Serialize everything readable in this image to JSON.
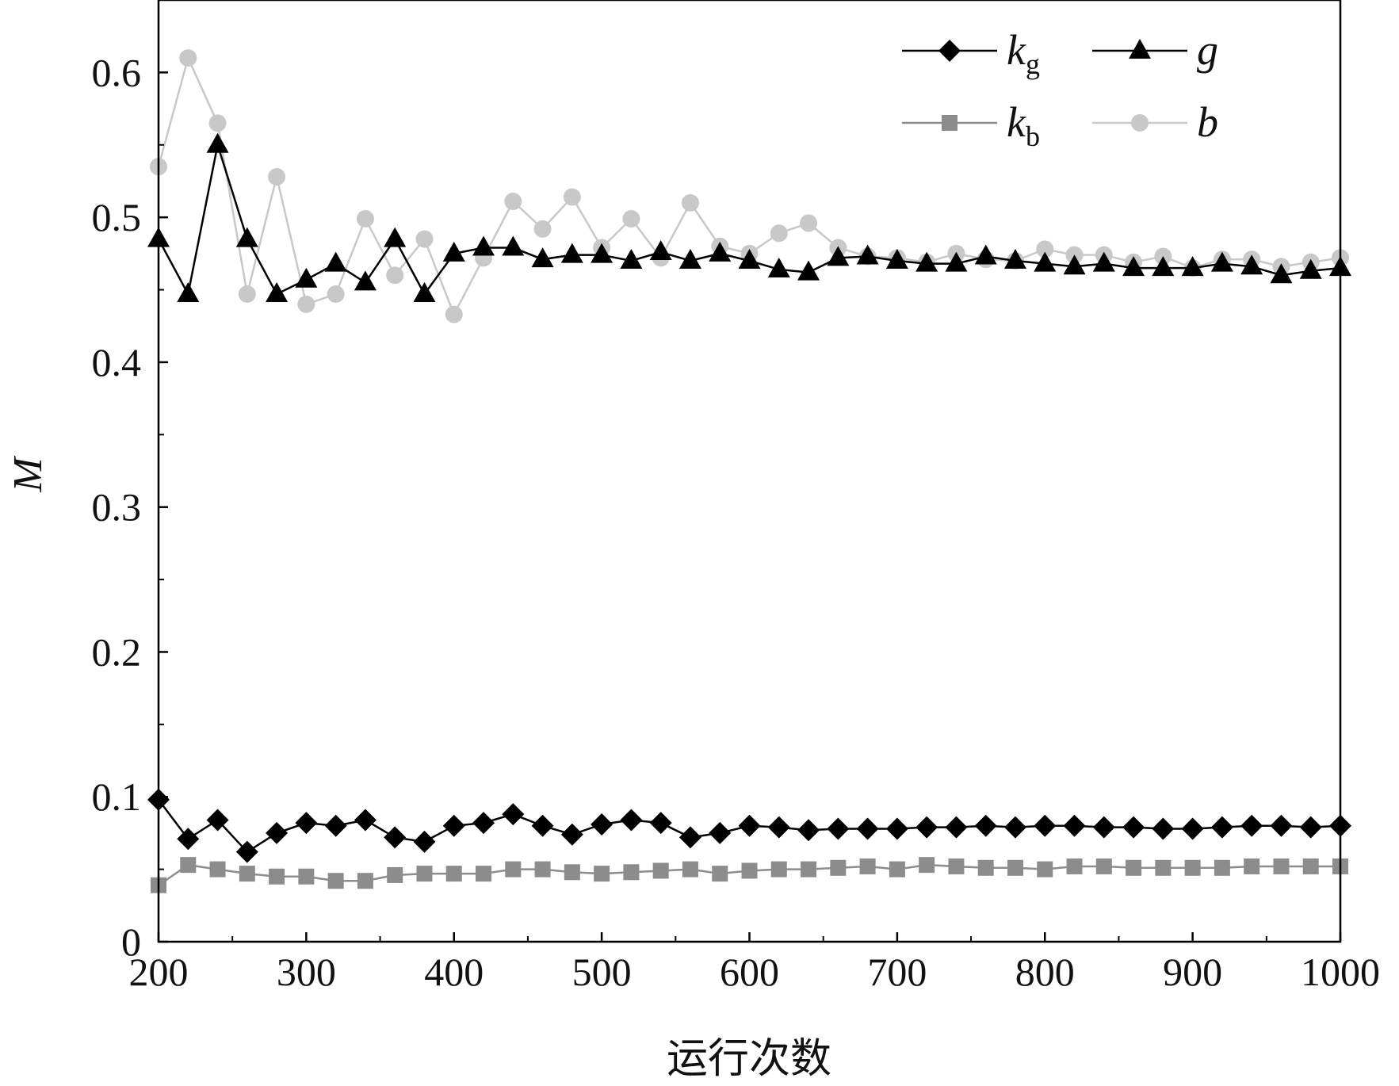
{
  "chart_data": {
    "type": "line",
    "xlabel": "运行次数",
    "ylabel": "M",
    "xlim": [
      200,
      1000
    ],
    "ylim": [
      0,
      0.65
    ],
    "xticks": [
      "200",
      "300",
      "400",
      "500",
      "600",
      "700",
      "800",
      "900",
      "1000"
    ],
    "yticks": [
      "0",
      "0.1",
      "0.2",
      "0.3",
      "0.4",
      "0.5",
      "0.6"
    ],
    "grid": false,
    "legend_position": "top-right",
    "x": [
      200,
      220,
      240,
      260,
      280,
      300,
      320,
      340,
      360,
      380,
      400,
      420,
      440,
      460,
      480,
      500,
      520,
      540,
      560,
      580,
      600,
      620,
      640,
      660,
      680,
      700,
      720,
      740,
      760,
      780,
      800,
      820,
      840,
      860,
      880,
      900,
      920,
      940,
      960,
      980,
      1000
    ],
    "series": [
      {
        "name": "k_g",
        "label_main": "k",
        "label_sub": "g",
        "marker": "diamond",
        "color": "#000000",
        "values": [
          0.098,
          0.071,
          0.084,
          0.062,
          0.075,
          0.082,
          0.08,
          0.084,
          0.072,
          0.069,
          0.08,
          0.082,
          0.088,
          0.08,
          0.074,
          0.081,
          0.084,
          0.082,
          0.072,
          0.075,
          0.08,
          0.079,
          0.077,
          0.078,
          0.078,
          0.078,
          0.079,
          0.079,
          0.08,
          0.079,
          0.08,
          0.08,
          0.079,
          0.079,
          0.078,
          0.078,
          0.079,
          0.08,
          0.08,
          0.079,
          0.08
        ]
      },
      {
        "name": "g",
        "label_main": "g",
        "label_sub": "",
        "marker": "triangle",
        "color": "#000000",
        "values": [
          0.485,
          0.447,
          0.55,
          0.485,
          0.447,
          0.457,
          0.468,
          0.455,
          0.485,
          0.447,
          0.475,
          0.479,
          0.479,
          0.471,
          0.474,
          0.474,
          0.47,
          0.476,
          0.47,
          0.475,
          0.47,
          0.464,
          0.462,
          0.472,
          0.473,
          0.47,
          0.468,
          0.468,
          0.473,
          0.47,
          0.468,
          0.466,
          0.468,
          0.465,
          0.465,
          0.465,
          0.468,
          0.466,
          0.46,
          0.463,
          0.465
        ]
      },
      {
        "name": "k_b",
        "label_main": "k",
        "label_sub": "b",
        "marker": "square",
        "color": "#8c8c8c",
        "values": [
          0.039,
          0.053,
          0.05,
          0.047,
          0.045,
          0.045,
          0.042,
          0.042,
          0.046,
          0.047,
          0.047,
          0.047,
          0.05,
          0.05,
          0.048,
          0.047,
          0.048,
          0.049,
          0.05,
          0.047,
          0.049,
          0.05,
          0.05,
          0.051,
          0.052,
          0.05,
          0.053,
          0.052,
          0.051,
          0.051,
          0.05,
          0.052,
          0.052,
          0.051,
          0.051,
          0.051,
          0.051,
          0.052,
          0.052,
          0.052,
          0.052
        ]
      },
      {
        "name": "b",
        "label_main": "b",
        "label_sub": "",
        "marker": "circle",
        "color": "#c8c8c8",
        "values": [
          0.535,
          0.61,
          0.565,
          0.447,
          0.528,
          0.44,
          0.447,
          0.499,
          0.46,
          0.485,
          0.433,
          0.472,
          0.511,
          0.492,
          0.514,
          0.479,
          0.499,
          0.472,
          0.51,
          0.48,
          0.475,
          0.489,
          0.496,
          0.479,
          0.473,
          0.472,
          0.469,
          0.475,
          0.471,
          0.47,
          0.478,
          0.474,
          0.474,
          0.469,
          0.473,
          0.465,
          0.471,
          0.471,
          0.466,
          0.469,
          0.472
        ]
      }
    ]
  }
}
